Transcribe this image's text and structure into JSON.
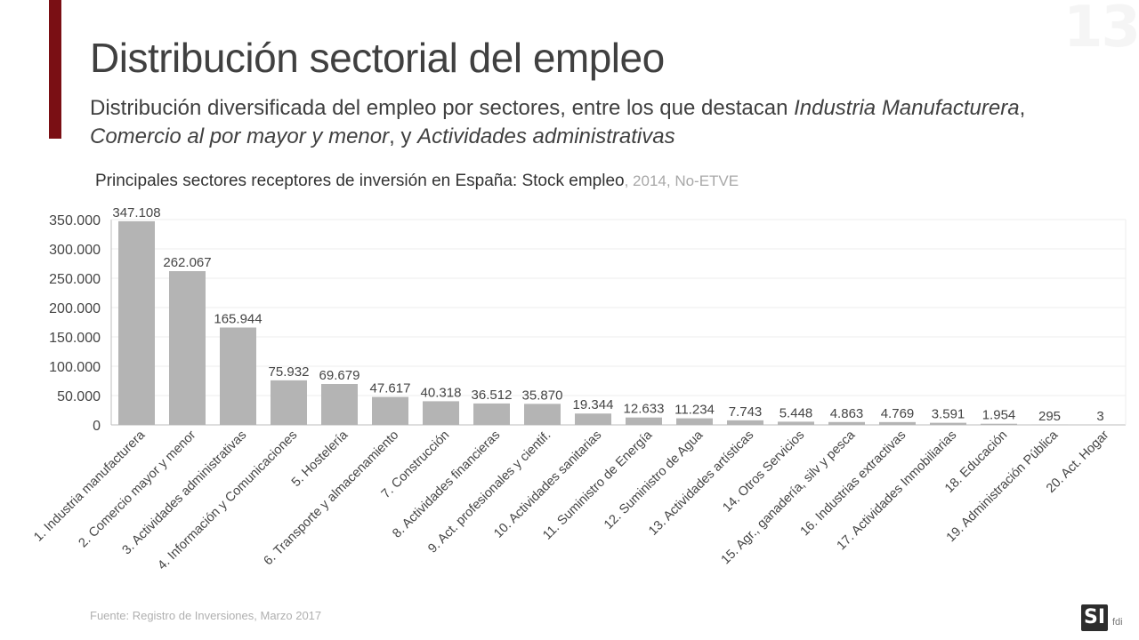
{
  "slide": {
    "page_number": "13",
    "title": "Distribución sectorial del empleo",
    "subtitle_part1": "Distribución diversificada del empleo por sectores, entre los que destacan ",
    "subtitle_em1": "Industria Manufacturera",
    "subtitle_part2": ", ",
    "subtitle_em2": "Comercio al por mayor y menor",
    "subtitle_part3": ", y ",
    "subtitle_em3": "Actividades administrativas",
    "source": "Fuente: Registro de Inversiones, Marzo 2017",
    "logo_text": "SI",
    "logo_sub": "fdi",
    "accent_color": "#7a0f14"
  },
  "chart_data": {
    "type": "bar",
    "title": "Principales sectores receptores de inversión en España: Stock empleo",
    "title_meta": ", 2014, No-ETVE",
    "xlabel": "",
    "ylabel": "",
    "ylim": [
      0,
      350000
    ],
    "yticks": [
      0,
      50000,
      100000,
      150000,
      200000,
      250000,
      300000,
      350000
    ],
    "ytick_labels": [
      "0",
      "50.000",
      "100.000",
      "150.000",
      "200.000",
      "250.000",
      "300.000",
      "350.000"
    ],
    "bar_color": "#b4b4b4",
    "grid": true,
    "categories": [
      "1. Industria manufacturera",
      "2. Comercio mayor y menor",
      "3. Actividades administrativas",
      "4. Información y Comunicaciones",
      "5. Hostelería",
      "6. Transporte y almacenamiento",
      "7. Construcción",
      "8. Actividades financieras",
      "9. Act. profesionales y cientif.",
      "10. Actividades sanitarias",
      "11. Suministro de Energía",
      "12. Suministro de Agua",
      "13. Actividades artísticas",
      "14. Otros Servicios",
      "15. Agr., ganadería, silv y pesca",
      "16. Industrias extractivas",
      "17. Actividades Inmobiliarias",
      "18. Educación",
      "19. Administración Pública",
      "20. Act. Hogar"
    ],
    "values": [
      347108,
      262067,
      165944,
      75932,
      69679,
      47617,
      40318,
      36512,
      35870,
      19344,
      12633,
      11234,
      7743,
      5448,
      4863,
      4769,
      3591,
      1954,
      295,
      3
    ],
    "value_labels": [
      "347.108",
      "262.067",
      "165.944",
      "75.932",
      "69.679",
      "47.617",
      "40.318",
      "36.512",
      "35.870",
      "19.344",
      "12.633",
      "11.234",
      "7.743",
      "5.448",
      "4.863",
      "4.769",
      "3.591",
      "1.954",
      "295",
      "3"
    ]
  }
}
